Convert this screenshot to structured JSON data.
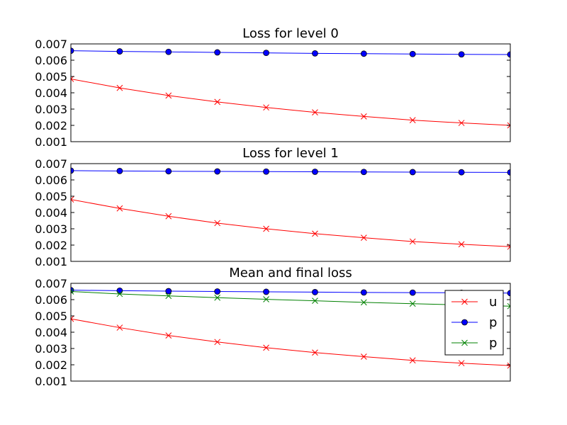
{
  "chart_data": [
    {
      "type": "line",
      "title": "Loss for level 0",
      "xlabel": "",
      "ylabel": "",
      "ylim": [
        0.001,
        0.007
      ],
      "yticks": [
        "0.001",
        "0.002",
        "0.003",
        "0.004",
        "0.005",
        "0.006",
        "0.007"
      ],
      "x": [
        0,
        1,
        2,
        3,
        4,
        5,
        6,
        7,
        8,
        9
      ],
      "xlim": [
        0,
        9
      ],
      "grid": false,
      "series": [
        {
          "color": "#ff0000",
          "marker": "x",
          "values": [
            0.00485,
            0.0043,
            0.00383,
            0.00344,
            0.0031,
            0.0028,
            0.00255,
            0.00232,
            0.00215,
            0.002
          ]
        },
        {
          "color": "#0000ff",
          "marker": "o",
          "values": [
            0.00658,
            0.00654,
            0.00651,
            0.00648,
            0.00645,
            0.00642,
            0.0064,
            0.00638,
            0.00636,
            0.00635
          ]
        }
      ]
    },
    {
      "type": "line",
      "title": "Loss for level 1",
      "xlabel": "",
      "ylabel": "",
      "ylim": [
        0.001,
        0.007
      ],
      "yticks": [
        "0.001",
        "0.002",
        "0.003",
        "0.004",
        "0.005",
        "0.006",
        "0.007"
      ],
      "x": [
        0,
        1,
        2,
        3,
        4,
        5,
        6,
        7,
        8,
        9
      ],
      "xlim": [
        0,
        9
      ],
      "grid": false,
      "series": [
        {
          "color": "#ff0000",
          "marker": "x",
          "values": [
            0.0048,
            0.00425,
            0.00377,
            0.00335,
            0.003,
            0.0027,
            0.00245,
            0.00222,
            0.00205,
            0.0019
          ]
        },
        {
          "color": "#0000ff",
          "marker": "o",
          "values": [
            0.00657,
            0.00655,
            0.00653,
            0.00652,
            0.00651,
            0.0065,
            0.00649,
            0.00648,
            0.00647,
            0.00646
          ]
        }
      ]
    },
    {
      "type": "line",
      "title": "Mean and final loss",
      "xlabel": "",
      "ylabel": "",
      "ylim": [
        0.001,
        0.007
      ],
      "yticks": [
        "0.001",
        "0.002",
        "0.003",
        "0.004",
        "0.005",
        "0.006",
        "0.007"
      ],
      "x": [
        0,
        1,
        2,
        3,
        4,
        5,
        6,
        7,
        8,
        9
      ],
      "xlim": [
        0,
        9
      ],
      "grid": false,
      "legend_position": "right",
      "series": [
        {
          "name": "u",
          "color": "#ff0000",
          "marker": "x",
          "values": [
            0.00482,
            0.00428,
            0.0038,
            0.0034,
            0.00305,
            0.00275,
            0.0025,
            0.00227,
            0.0021,
            0.00195
          ]
        },
        {
          "name": "p",
          "color": "#0000ff",
          "marker": "o",
          "values": [
            0.00658,
            0.00655,
            0.00652,
            0.0065,
            0.00648,
            0.00646,
            0.00644,
            0.00643,
            0.00642,
            0.0064
          ]
        },
        {
          "name": "p",
          "color": "#008000",
          "marker": "x",
          "values": [
            0.0065,
            0.00635,
            0.00623,
            0.00612,
            0.00602,
            0.00593,
            0.00583,
            0.00575,
            0.00567,
            0.0056
          ]
        }
      ]
    }
  ]
}
